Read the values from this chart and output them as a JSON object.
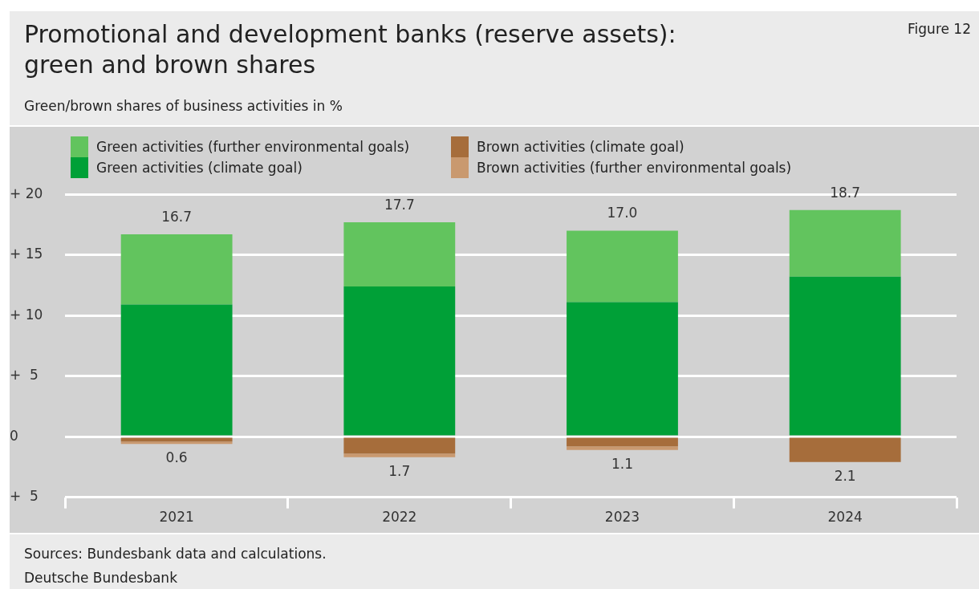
{
  "chart_data": {
    "type": "bar",
    "stacked": true,
    "title": "Promotional and development banks (reserve assets): green and brown shares",
    "subtitle": "Green/brown shares of business activities in %",
    "categories": [
      "2021",
      "2022",
      "2023",
      "2024"
    ],
    "series": [
      {
        "name": "Green activities (climate goal)",
        "color": "#00a037",
        "values": [
          10.9,
          12.4,
          11.1,
          13.2
        ]
      },
      {
        "name": "Green activities (further environmental goals)",
        "color": "#62c45e",
        "values": [
          5.8,
          5.3,
          5.9,
          5.5
        ]
      },
      {
        "name": "Brown activities (climate goal)",
        "color": "#a66d3b",
        "values": [
          -0.4,
          -1.4,
          -0.8,
          -2.1
        ]
      },
      {
        "name": "Brown activities (further environmental goals)",
        "color": "#c9996f",
        "values": [
          -0.2,
          -0.3,
          -0.3,
          0
        ]
      }
    ],
    "ylim": [
      -5,
      20
    ],
    "yticks": [
      {
        "value": -5,
        "label": "+  5"
      },
      0,
      {
        "value": 5,
        "label": "+  5"
      },
      {
        "value": 10,
        "label": "+ 10"
      },
      {
        "value": 15,
        "label": "+ 15"
      },
      {
        "value": 20,
        "label": "+ 20"
      }
    ],
    "grid": "y",
    "legend": "top",
    "annotations": [
      "Figure 12",
      "Sources: Bundesbank data and calculations.",
      "Deutsche Bundesbank",
      {
        "text": "16.7",
        "x": "2021",
        "y": 16.7
      },
      {
        "text": "17.7",
        "x": "2022",
        "y": 17.7
      },
      {
        "text": "17.0",
        "x": "2023",
        "y": 17.0
      },
      {
        "text": "18.7",
        "x": "2024",
        "y": 18.7
      },
      {
        "text": "0.6",
        "x": "2021",
        "y": -0.6
      },
      {
        "text": "1.7",
        "x": "2022",
        "y": -1.7
      },
      {
        "text": "1.1",
        "x": "2023",
        "y": -1.1
      },
      {
        "text": "2.1",
        "x": "2024",
        "y": -2.1
      }
    ]
  }
}
